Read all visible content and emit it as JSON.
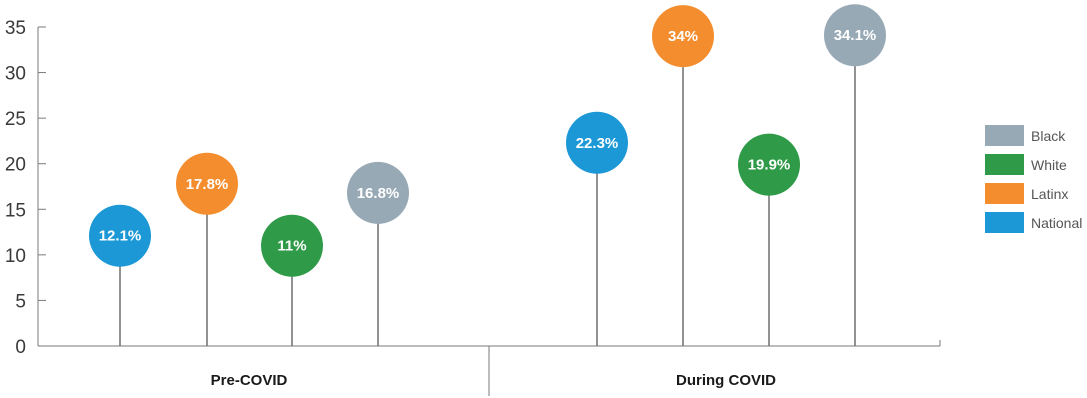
{
  "chart_data": {
    "type": "lollipop",
    "title": "",
    "xlabel": "",
    "ylabel": "",
    "ylim": [
      0,
      35
    ],
    "yticks": [
      "0",
      "5",
      "10",
      "15",
      "20",
      "25",
      "30",
      "35"
    ],
    "categories": [
      "Pre-COVID",
      "During COVID"
    ],
    "series": [
      {
        "name": "National",
        "color": "#1b98d5",
        "values": [
          12.1,
          22.3
        ],
        "labels": [
          "12.1%",
          "22.3%"
        ]
      },
      {
        "name": "Latinx",
        "color": "#f48d2e",
        "values": [
          17.8,
          34
        ],
        "labels": [
          "17.8%",
          "34%"
        ]
      },
      {
        "name": "White",
        "color": "#2f9a47",
        "values": [
          11,
          19.9
        ],
        "labels": [
          "11%",
          "19.9%"
        ]
      },
      {
        "name": "Black",
        "color": "#98a9b6",
        "values": [
          16.8,
          34.1
        ],
        "labels": [
          "16.8%",
          "34.1%"
        ]
      }
    ],
    "legend_order": [
      "Black",
      "White",
      "Latinx",
      "National"
    ],
    "legend_position": "right",
    "grid": false
  }
}
